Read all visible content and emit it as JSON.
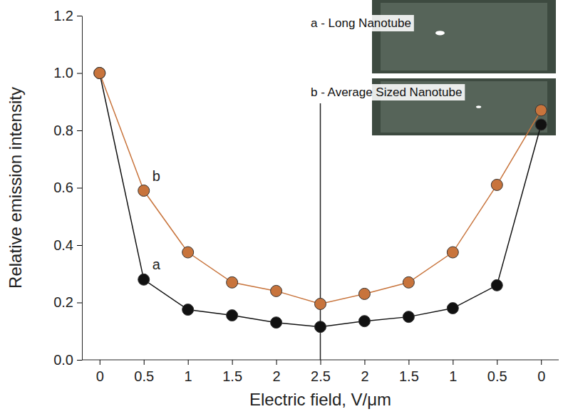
{
  "chart_data": {
    "type": "line",
    "x_label": "Electric field, V/μm",
    "y_label": "Relative emission intensity",
    "categories": [
      "0",
      "0.5",
      "1",
      "1.5",
      "2",
      "2.5",
      "2",
      "1.5",
      "1",
      "0.5",
      "0"
    ],
    "series": [
      {
        "name": "a",
        "color": "#111111",
        "marker": "circle",
        "line_style": "solid",
        "values": [
          1.0,
          0.28,
          0.175,
          0.155,
          0.13,
          0.115,
          0.135,
          0.15,
          0.18,
          0.26,
          0.82
        ]
      },
      {
        "name": "b",
        "color": "#c8743c",
        "marker": "circle",
        "line_style": "solid",
        "values": [
          1.0,
          0.59,
          0.375,
          0.27,
          0.24,
          0.195,
          0.23,
          0.27,
          0.375,
          0.61,
          0.87
        ]
      }
    ],
    "ylim": [
      0,
      1.2
    ],
    "yticks": [
      {
        "value": 0,
        "label": "0.0"
      },
      0.2,
      0.4,
      0.6,
      0.8,
      {
        "value": 1,
        "label": "1.0"
      },
      1.2
    ],
    "grid": false,
    "annotations": [
      "a - Long Nanotube",
      "b - Average Sized Nanotube"
    ]
  }
}
